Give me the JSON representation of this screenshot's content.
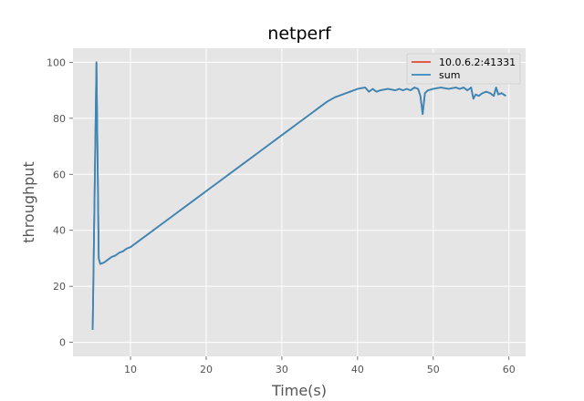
{
  "chart_data": {
    "type": "line",
    "title": "netperf",
    "xlabel": "Time(s)",
    "ylabel": "throughput",
    "xlim": [
      2.4,
      62.2
    ],
    "ylim": [
      -5,
      105
    ],
    "xticks": [
      10,
      20,
      30,
      40,
      50,
      60
    ],
    "yticks": [
      0,
      20,
      40,
      60,
      80,
      100
    ],
    "grid": true,
    "legend_position": "top-right",
    "colors": {
      "10.0.6.2:41331": "#e24a33",
      "sum": "#348abd",
      "plot_bg": "#e5e5e5",
      "grid": "#ffffff"
    },
    "series": [
      {
        "name": "10.0.6.2:41331",
        "x": [
          5.0,
          5.5,
          5.8,
          6.0,
          6.5,
          7.0,
          7.5,
          8.0,
          8.5,
          9.0,
          9.5,
          10.0,
          11,
          12,
          13,
          14,
          15,
          16,
          17,
          18,
          19,
          20,
          21,
          22,
          23,
          24,
          25,
          26,
          27,
          28,
          29,
          30,
          31,
          32,
          33,
          34,
          35,
          36,
          37,
          38,
          39,
          40,
          41,
          41.5,
          42,
          42.5,
          43,
          44,
          45,
          45.5,
          46,
          46.5,
          47,
          47.5,
          48,
          48.3,
          48.6,
          48.9,
          49.3,
          50,
          51,
          52,
          53,
          53.5,
          54,
          54.5,
          55,
          55.3,
          55.6,
          56,
          56.5,
          57,
          57.5,
          58,
          58.3,
          58.6,
          59,
          59.3,
          59.6
        ],
        "y": [
          4.5,
          100,
          30,
          28,
          28.5,
          29.5,
          30.5,
          31,
          32,
          32.5,
          33.5,
          34,
          36,
          38,
          40,
          42,
          44,
          46,
          48,
          50,
          52,
          54,
          56,
          58,
          60,
          62,
          64,
          66,
          68,
          70,
          72,
          74,
          76,
          78,
          80,
          82,
          84,
          86,
          87.5,
          88.5,
          89.5,
          90.5,
          91,
          89.5,
          90.5,
          89.5,
          90,
          90.5,
          90,
          90.5,
          90,
          90.5,
          90,
          91,
          90.5,
          88,
          81.5,
          89,
          90,
          90.5,
          91,
          90.5,
          91,
          90.5,
          91,
          90,
          91,
          87,
          88.5,
          88,
          89,
          89.5,
          89,
          88,
          91,
          88.5,
          89,
          88.5,
          88
        ]
      },
      {
        "name": "sum",
        "x": [
          5.0,
          5.5,
          5.8,
          6.0,
          6.5,
          7.0,
          7.5,
          8.0,
          8.5,
          9.0,
          9.5,
          10.0,
          11,
          12,
          13,
          14,
          15,
          16,
          17,
          18,
          19,
          20,
          21,
          22,
          23,
          24,
          25,
          26,
          27,
          28,
          29,
          30,
          31,
          32,
          33,
          34,
          35,
          36,
          37,
          38,
          39,
          40,
          41,
          41.5,
          42,
          42.5,
          43,
          44,
          45,
          45.5,
          46,
          46.5,
          47,
          47.5,
          48,
          48.3,
          48.6,
          48.9,
          49.3,
          50,
          51,
          52,
          53,
          53.5,
          54,
          54.5,
          55,
          55.3,
          55.6,
          56,
          56.5,
          57,
          57.5,
          58,
          58.3,
          58.6,
          59,
          59.3,
          59.6
        ],
        "y": [
          4.5,
          100,
          30,
          28,
          28.5,
          29.5,
          30.5,
          31,
          32,
          32.5,
          33.5,
          34,
          36,
          38,
          40,
          42,
          44,
          46,
          48,
          50,
          52,
          54,
          56,
          58,
          60,
          62,
          64,
          66,
          68,
          70,
          72,
          74,
          76,
          78,
          80,
          82,
          84,
          86,
          87.5,
          88.5,
          89.5,
          90.5,
          91,
          89.5,
          90.5,
          89.5,
          90,
          90.5,
          90,
          90.5,
          90,
          90.5,
          90,
          91,
          90.5,
          88,
          81.5,
          89,
          90,
          90.5,
          91,
          90.5,
          91,
          90.5,
          91,
          90,
          91,
          87,
          88.5,
          88,
          89,
          89.5,
          89,
          88,
          91,
          88.5,
          89,
          88.5,
          88
        ]
      }
    ]
  }
}
